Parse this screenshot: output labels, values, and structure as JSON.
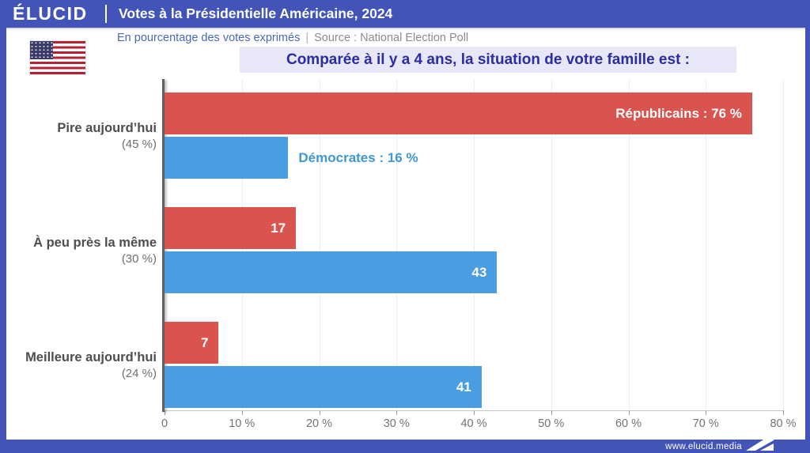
{
  "header": {
    "logo": "ÉLUCID",
    "title": "Votes à la Présidentielle Américaine, 2024"
  },
  "subheader": {
    "note": "En pourcentage des votes exprimés",
    "separator": "|",
    "source": "Source : National Election Poll"
  },
  "footer": {
    "url": "www.elucid.media"
  },
  "colors": {
    "frame_blue": "#4254b8",
    "banner_bg": "#e7e7f8",
    "banner_text": "#2b2da1",
    "republican_red": "#d9534f",
    "democrat_blue": "#4a9de0",
    "democrat_outside_label": "#3f97d6",
    "note_blue": "#4a69b4",
    "source_gray": "#8c8c8c"
  },
  "chart_data": {
    "type": "bar",
    "orientation": "horizontal",
    "title": "Comparée à il y a 4 ans, la situation de votre famille est :",
    "categories": [
      "Pire aujourd’hui",
      "À peu près la même",
      "Meilleure aujourd’hui"
    ],
    "category_shares": [
      "(45 %)",
      "(30 %)",
      "(24 %)"
    ],
    "series": [
      {
        "name": "Républicains",
        "color": "#d9534f",
        "values": [
          76,
          17,
          7
        ],
        "value_labels": [
          "Républicains : 76 %",
          "17",
          "7"
        ],
        "label_placement": [
          "inside",
          "inside",
          "inside"
        ]
      },
      {
        "name": "Démocrates",
        "color": "#4a9de0",
        "values": [
          16,
          43,
          41
        ],
        "value_labels": [
          "Démocrates : 16 %",
          "43",
          "41"
        ],
        "label_placement": [
          "outside",
          "inside",
          "inside"
        ]
      }
    ],
    "xlim": [
      0,
      80
    ],
    "x_tick_values": [
      0,
      10,
      20,
      30,
      40,
      50,
      60,
      70,
      80
    ],
    "x_tick_labels": [
      "0",
      "10 %",
      "20 %",
      "30 %",
      "40 %",
      "50 %",
      "60 %",
      "70 %",
      "80 %"
    ],
    "grid": true,
    "legend": "inline-bar-labels"
  }
}
